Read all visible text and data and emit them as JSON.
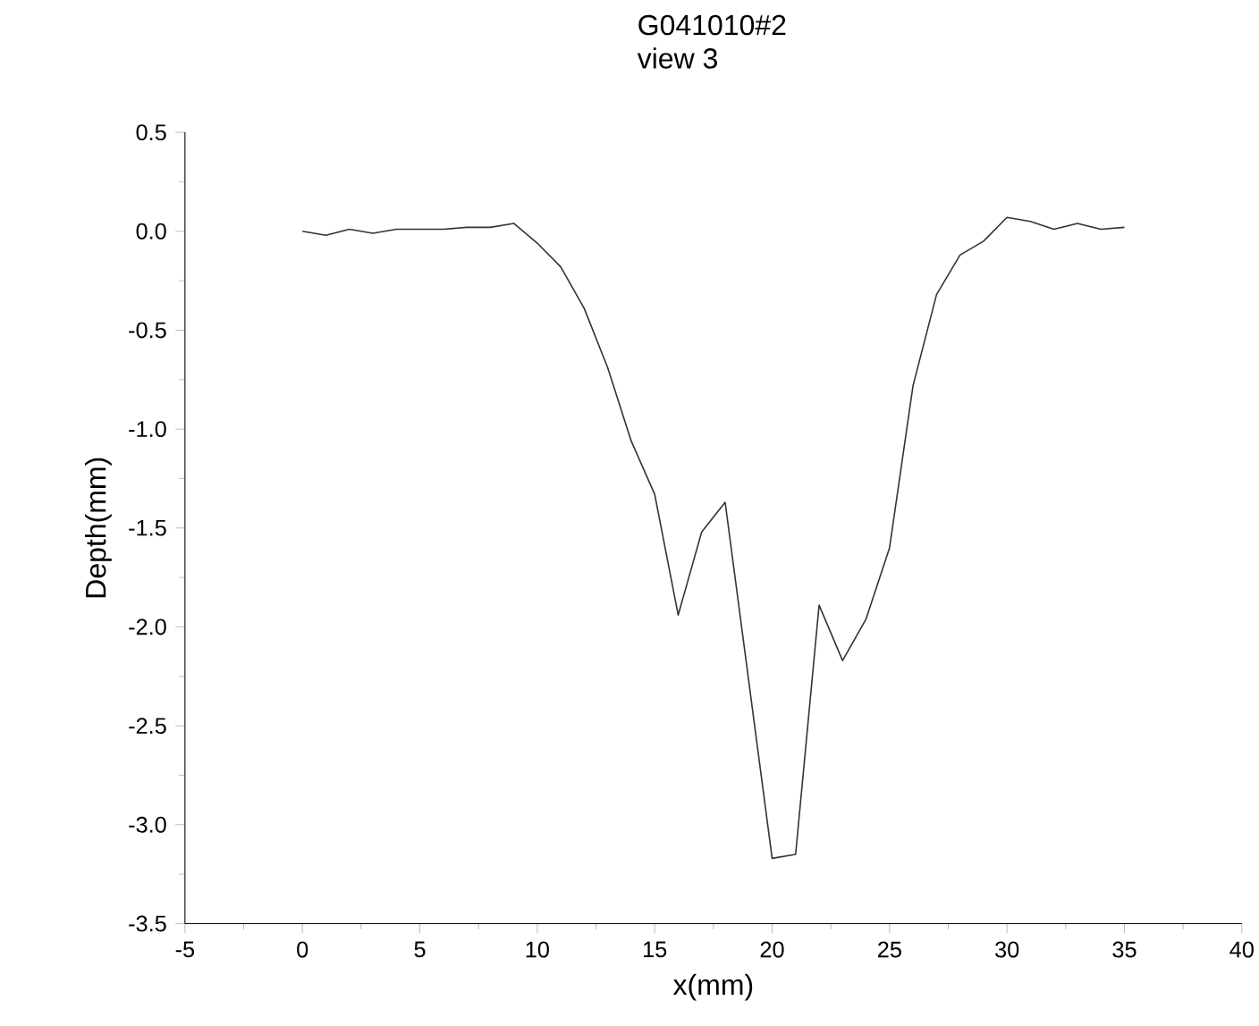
{
  "chart_data": {
    "type": "line",
    "title": "G041010#2",
    "subtitle": "view 3",
    "xlabel": "x(mm)",
    "ylabel": "Depth(mm)",
    "x": [
      0,
      1,
      2,
      3,
      4,
      5,
      6,
      7,
      8,
      9,
      10,
      11,
      12,
      13,
      14,
      15,
      16,
      17,
      18,
      19,
      20,
      21,
      22,
      23,
      24,
      25,
      26,
      27,
      28,
      29,
      30,
      31,
      32,
      33,
      34,
      35
    ],
    "series": [
      {
        "color": "#333333",
        "values": [
          0,
          -0.02,
          0.01,
          -0.01,
          0.01,
          0.01,
          0.01,
          0.02,
          0.02,
          0.04,
          -0.06,
          -0.18,
          -0.39,
          -0.69,
          -1.06,
          -1.33,
          -1.94,
          -1.52,
          -1.37,
          -2.27,
          -3.17,
          -3.15,
          -1.89,
          -2.17,
          -1.96,
          -1.6,
          -0.78,
          -0.32,
          -0.12,
          -0.05,
          0.07,
          0.05,
          0.01,
          0.04,
          0.01,
          0.02
        ]
      }
    ],
    "xlim": [
      -5,
      40
    ],
    "ylim": [
      -3.5,
      0.5
    ],
    "xticks": [
      -5,
      0,
      5,
      10,
      15,
      20,
      25,
      30,
      35,
      40
    ],
    "yticks": [
      -3.5,
      {
        "value": -3,
        "label": "-3.0"
      },
      -2.5,
      {
        "value": -2,
        "label": "-2.0"
      },
      -1.5,
      {
        "value": -1,
        "label": "-1.0"
      },
      -0.5,
      {
        "value": 0,
        "label": "0.0"
      },
      0.5
    ],
    "marker": "none",
    "line_style": "solid"
  }
}
